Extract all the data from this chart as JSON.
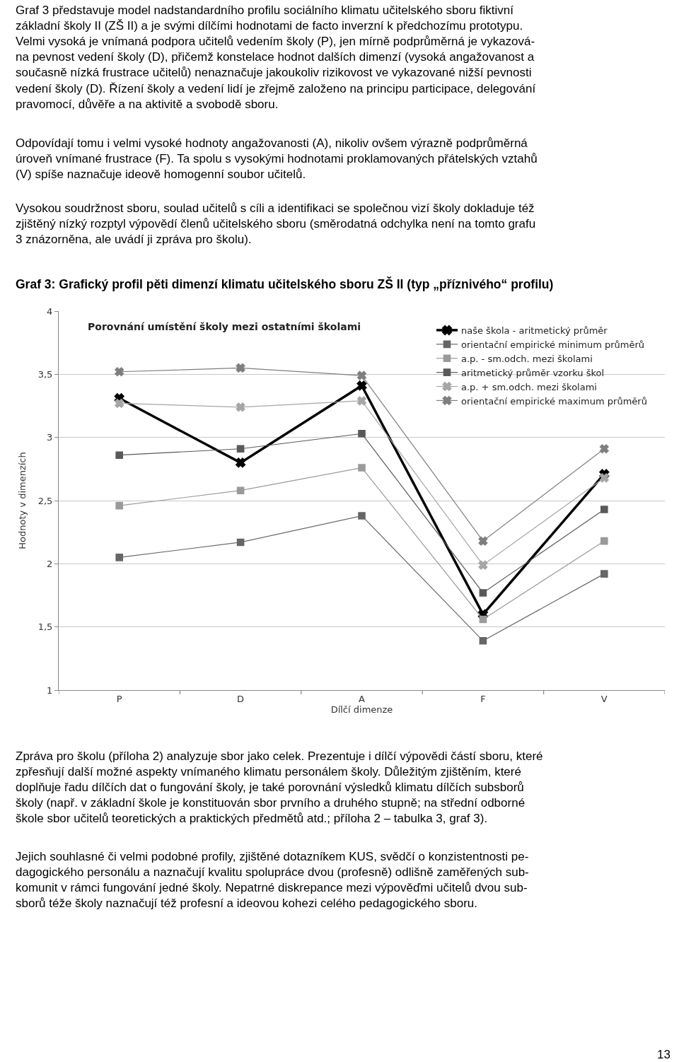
{
  "chart_data": {
    "type": "line",
    "title": "Graf 3: Grafický profil pěti dimenzí klimatu učitelského sboru ZŠ II (typ „příznivého“ profilu)",
    "subtitle": "Porovnání umístění školy mezi ostatními školami",
    "xlabel": "Dílčí dimenze",
    "ylabel": "Hodnoty v dimenzích",
    "categories": [
      "P",
      "D",
      "A",
      "F",
      "V"
    ],
    "series": [
      {
        "name": "naše škola - aritmetický průměr",
        "color": "#000000",
        "marker": "cross",
        "values": [
          3.31,
          2.8,
          3.41,
          1.6,
          2.71
        ]
      },
      {
        "name": "orientační empirické minimum průměrů",
        "color": "#666666",
        "marker": "square",
        "values": [
          2.05,
          2.17,
          2.38,
          1.39,
          1.92
        ]
      },
      {
        "name": "a.p. - sm.odch. mezi školami",
        "color": "#9a9a9a",
        "marker": "square",
        "values": [
          2.46,
          2.58,
          2.76,
          1.56,
          2.18
        ]
      },
      {
        "name": "aritmetický průměr vzorku škol",
        "color": "#595959",
        "marker": "square",
        "values": [
          2.86,
          2.91,
          3.03,
          1.77,
          2.43
        ]
      },
      {
        "name": "a.p. + sm.odch. mezi školami",
        "color": "#a6a6a6",
        "marker": "cross",
        "values": [
          3.27,
          3.24,
          3.29,
          1.99,
          2.68
        ]
      },
      {
        "name": "orientační empirické maximum průměrů",
        "color": "#7f7f7f",
        "marker": "cross",
        "values": [
          3.52,
          3.55,
          3.49,
          2.18,
          2.91
        ]
      }
    ],
    "ylim": [
      1,
      4
    ],
    "yticks": [
      1,
      {
        "value": 1.5,
        "label": "1,5"
      },
      2,
      {
        "value": 2.5,
        "label": "2,5"
      },
      3,
      {
        "value": 3.5,
        "label": "3,5"
      },
      4
    ],
    "grid": "y",
    "legend": "top right",
    "annotations": [
      "Graf 3 představuje model nadstandardního profilu sociálního klimatu učitelského sboru fiktivní\nzákladní školy II (ZŠ II) a je svými dílčími hodnotami de facto inverzní k předchozímu prototypu.\nVelmi vysoká je vnímaná podpora učitelů vedením školy (P), jen mírně podprůměrná je vykazová-\nna pevnost vedení školy (D), přičemž konstelace hodnot dalších dimenzí (vysoká angažovanost a\nsoučasně nízká frustrace učitelů) nenaznačuje jakoukoliv rizikovost ve vykazované nižší pevnosti\nvedení školy (D). Řízení školy a vedení lidí je zřejmě založeno na principu participace, delegování\npravomocí, důvěře a na aktivitě a svobodě sboru.",
      "Odpovídají tomu i velmi vysoké hodnoty angažovanosti (A), nikoliv ovšem výrazně podprůměrná\núroveň vnímané frustrace (F). Ta spolu s vysokými hodnotami proklamovaných přátelských vztahů\n(V) spíše naznačuje ideově homogenní soubor učitelů.",
      "Vysokou soudržnost sboru, soulad učitelů s cíli a identifikaci se společnou vizí školy dokladuje též\nzjištěný nízký rozptyl výpovědí členů učitelského sboru (směrodatná odchylka není na tomto grafu\n3 znázorněna, ale uvádí ji zpráva pro školu).",
      "Zpráva pro školu (příloha 2) analyzuje sbor jako celek. Prezentuje i dílčí výpovědi částí sboru, které\nzpřesňují další možné aspekty vnímaného klimatu personálem školy. Důležitým zjištěním, které\ndoplňuje řadu dílčích dat o fungování školy, je také porovnání výsledků klimatu dílčích subsborů\nškoly (např. v základní škole je konstituován sbor prvního a druhého stupně; na střední odborné\nškole sbor učitelů teoretických a praktických předmětů atd.; příloha 2 – tabulka 3, graf 3).",
      "Jejich souhlasné či velmi podobné profily, zjištěné dotazníkem KUS, svědčí o konzistentnosti pe-\ndagogického personálu a naznačují kvalitu spolupráce dvou (profesně) odlišně zaměřených sub-\nkomunit v rámci fungování jedné školy. Nepatrné diskrepance mezi výpověďmi učitelů dvou sub-\nsborů téže školy naznačují též profesní a ideovou kohezi celého pedagogického sboru.",
      "13"
    ]
  }
}
